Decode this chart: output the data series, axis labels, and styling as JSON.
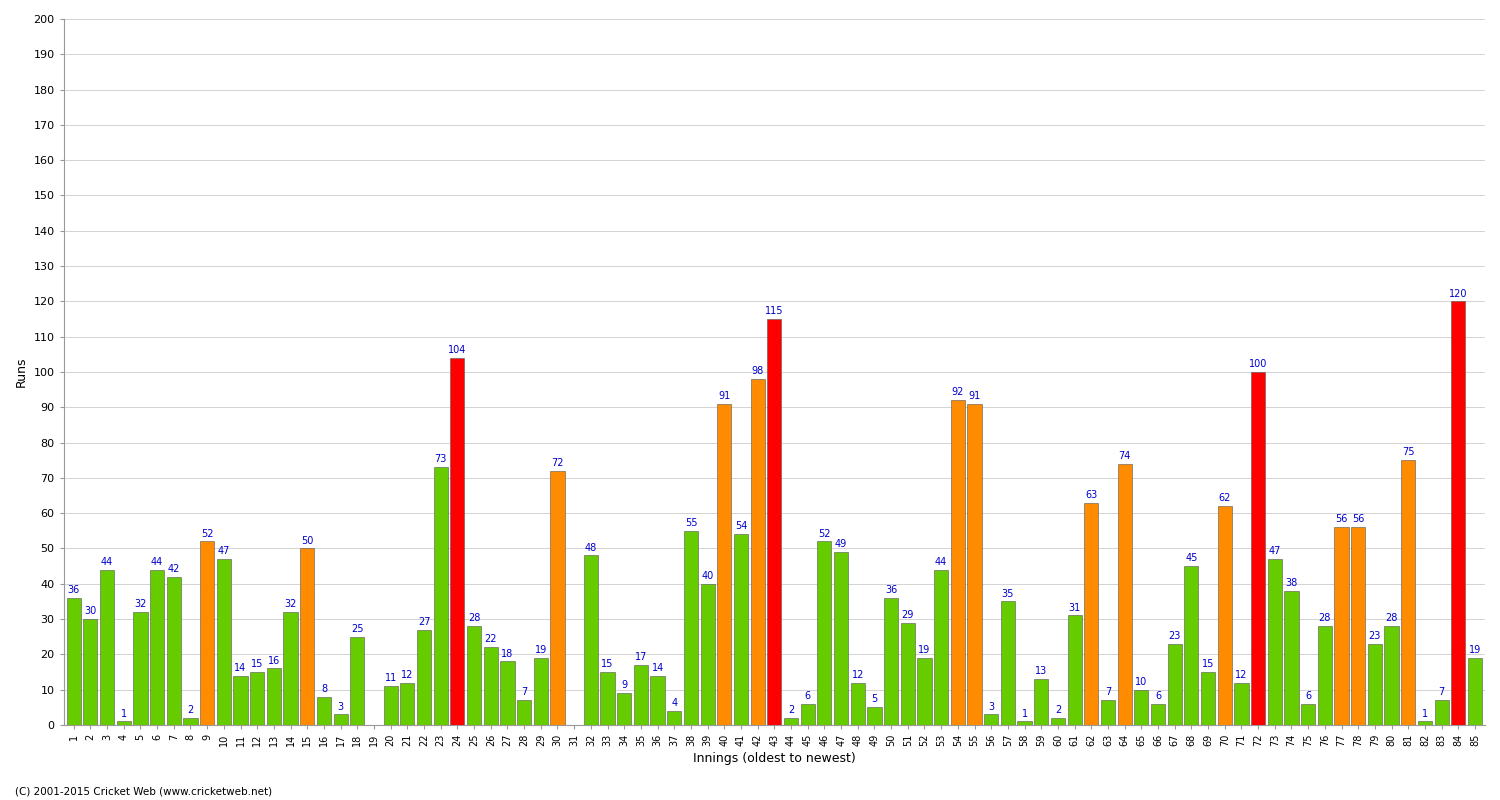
{
  "xlabel": "Innings (oldest to newest)",
  "ylabel": "Runs",
  "footer": "(C) 2001-2015 Cricket Web (www.cricketweb.net)",
  "ylim": [
    0,
    200
  ],
  "yticks": [
    0,
    10,
    20,
    30,
    40,
    50,
    60,
    70,
    80,
    90,
    100,
    110,
    120,
    130,
    140,
    150,
    160,
    170,
    180,
    190,
    200
  ],
  "innings": [
    {
      "label": "1",
      "runs": 36,
      "color": "green"
    },
    {
      "label": "2",
      "runs": 30,
      "color": "green"
    },
    {
      "label": "3",
      "runs": 44,
      "color": "green"
    },
    {
      "label": "4",
      "runs": 1,
      "color": "green"
    },
    {
      "label": "5",
      "runs": 32,
      "color": "green"
    },
    {
      "label": "6",
      "runs": 44,
      "color": "green"
    },
    {
      "label": "7",
      "runs": 42,
      "color": "green"
    },
    {
      "label": "8",
      "runs": 2,
      "color": "green"
    },
    {
      "label": "9",
      "runs": 52,
      "color": "orange"
    },
    {
      "label": "10",
      "runs": 47,
      "color": "green"
    },
    {
      "label": "11",
      "runs": 14,
      "color": "green"
    },
    {
      "label": "12",
      "runs": 15,
      "color": "green"
    },
    {
      "label": "13",
      "runs": 16,
      "color": "green"
    },
    {
      "label": "14",
      "runs": 32,
      "color": "green"
    },
    {
      "label": "15",
      "runs": 50,
      "color": "orange"
    },
    {
      "label": "16",
      "runs": 8,
      "color": "green"
    },
    {
      "label": "17",
      "runs": 3,
      "color": "green"
    },
    {
      "label": "18",
      "runs": 25,
      "color": "green"
    },
    {
      "label": "19",
      "runs": 0,
      "color": "green"
    },
    {
      "label": "20",
      "runs": 11,
      "color": "green"
    },
    {
      "label": "21",
      "runs": 12,
      "color": "green"
    },
    {
      "label": "22",
      "runs": 27,
      "color": "green"
    },
    {
      "label": "23",
      "runs": 73,
      "color": "green"
    },
    {
      "label": "24",
      "runs": 104,
      "color": "red"
    },
    {
      "label": "25",
      "runs": 28,
      "color": "green"
    },
    {
      "label": "26",
      "runs": 22,
      "color": "green"
    },
    {
      "label": "27",
      "runs": 18,
      "color": "green"
    },
    {
      "label": "28",
      "runs": 7,
      "color": "green"
    },
    {
      "label": "29",
      "runs": 19,
      "color": "green"
    },
    {
      "label": "30",
      "runs": 72,
      "color": "orange"
    },
    {
      "label": "31",
      "runs": 0,
      "color": "green"
    },
    {
      "label": "32",
      "runs": 48,
      "color": "green"
    },
    {
      "label": "33",
      "runs": 15,
      "color": "green"
    },
    {
      "label": "34",
      "runs": 9,
      "color": "green"
    },
    {
      "label": "35",
      "runs": 17,
      "color": "green"
    },
    {
      "label": "36",
      "runs": 14,
      "color": "green"
    },
    {
      "label": "37",
      "runs": 4,
      "color": "green"
    },
    {
      "label": "38",
      "runs": 55,
      "color": "green"
    },
    {
      "label": "39",
      "runs": 40,
      "color": "green"
    },
    {
      "label": "40",
      "runs": 91,
      "color": "orange"
    },
    {
      "label": "41",
      "runs": 54,
      "color": "green"
    },
    {
      "label": "42",
      "runs": 98,
      "color": "orange"
    },
    {
      "label": "43",
      "runs": 115,
      "color": "red"
    },
    {
      "label": "44",
      "runs": 2,
      "color": "green"
    },
    {
      "label": "45",
      "runs": 6,
      "color": "green"
    },
    {
      "label": "46",
      "runs": 52,
      "color": "green"
    },
    {
      "label": "47",
      "runs": 49,
      "color": "green"
    },
    {
      "label": "48",
      "runs": 12,
      "color": "green"
    },
    {
      "label": "49",
      "runs": 5,
      "color": "green"
    },
    {
      "label": "50",
      "runs": 36,
      "color": "green"
    },
    {
      "label": "51",
      "runs": 29,
      "color": "green"
    },
    {
      "label": "52",
      "runs": 19,
      "color": "green"
    },
    {
      "label": "53",
      "runs": 44,
      "color": "green"
    },
    {
      "label": "54",
      "runs": 92,
      "color": "orange"
    },
    {
      "label": "55",
      "runs": 91,
      "color": "orange"
    },
    {
      "label": "56",
      "runs": 3,
      "color": "green"
    },
    {
      "label": "57",
      "runs": 35,
      "color": "green"
    },
    {
      "label": "58",
      "runs": 1,
      "color": "green"
    },
    {
      "label": "59",
      "runs": 13,
      "color": "green"
    },
    {
      "label": "60",
      "runs": 2,
      "color": "green"
    },
    {
      "label": "61",
      "runs": 31,
      "color": "green"
    },
    {
      "label": "62",
      "runs": 63,
      "color": "orange"
    },
    {
      "label": "63",
      "runs": 7,
      "color": "green"
    },
    {
      "label": "64",
      "runs": 74,
      "color": "orange"
    },
    {
      "label": "65",
      "runs": 10,
      "color": "green"
    },
    {
      "label": "66",
      "runs": 6,
      "color": "green"
    },
    {
      "label": "67",
      "runs": 23,
      "color": "green"
    },
    {
      "label": "68",
      "runs": 45,
      "color": "green"
    },
    {
      "label": "69",
      "runs": 15,
      "color": "green"
    },
    {
      "label": "70",
      "runs": 62,
      "color": "orange"
    },
    {
      "label": "71",
      "runs": 12,
      "color": "green"
    },
    {
      "label": "72",
      "runs": 100,
      "color": "red"
    },
    {
      "label": "73",
      "runs": 47,
      "color": "green"
    },
    {
      "label": "74",
      "runs": 38,
      "color": "green"
    },
    {
      "label": "75",
      "runs": 6,
      "color": "green"
    },
    {
      "label": "76",
      "runs": 28,
      "color": "green"
    },
    {
      "label": "77",
      "runs": 56,
      "color": "orange"
    },
    {
      "label": "78",
      "runs": 56,
      "color": "orange"
    },
    {
      "label": "79",
      "runs": 23,
      "color": "green"
    },
    {
      "label": "80",
      "runs": 28,
      "color": "green"
    },
    {
      "label": "81",
      "runs": 75,
      "color": "orange"
    },
    {
      "label": "82",
      "runs": 1,
      "color": "green"
    },
    {
      "label": "83",
      "runs": 7,
      "color": "green"
    },
    {
      "label": "84",
      "runs": 120,
      "color": "red"
    },
    {
      "label": "85",
      "runs": 19,
      "color": "green"
    }
  ],
  "color_map": {
    "green": "#66CC00",
    "orange": "#FF8C00",
    "red": "#FF0000"
  },
  "bg_color": "#FFFFFF",
  "grid_color": "#CCCCCC",
  "label_color": "#0000CC",
  "axis_label_fontsize": 9,
  "tick_fontsize": 8,
  "value_fontsize": 7
}
